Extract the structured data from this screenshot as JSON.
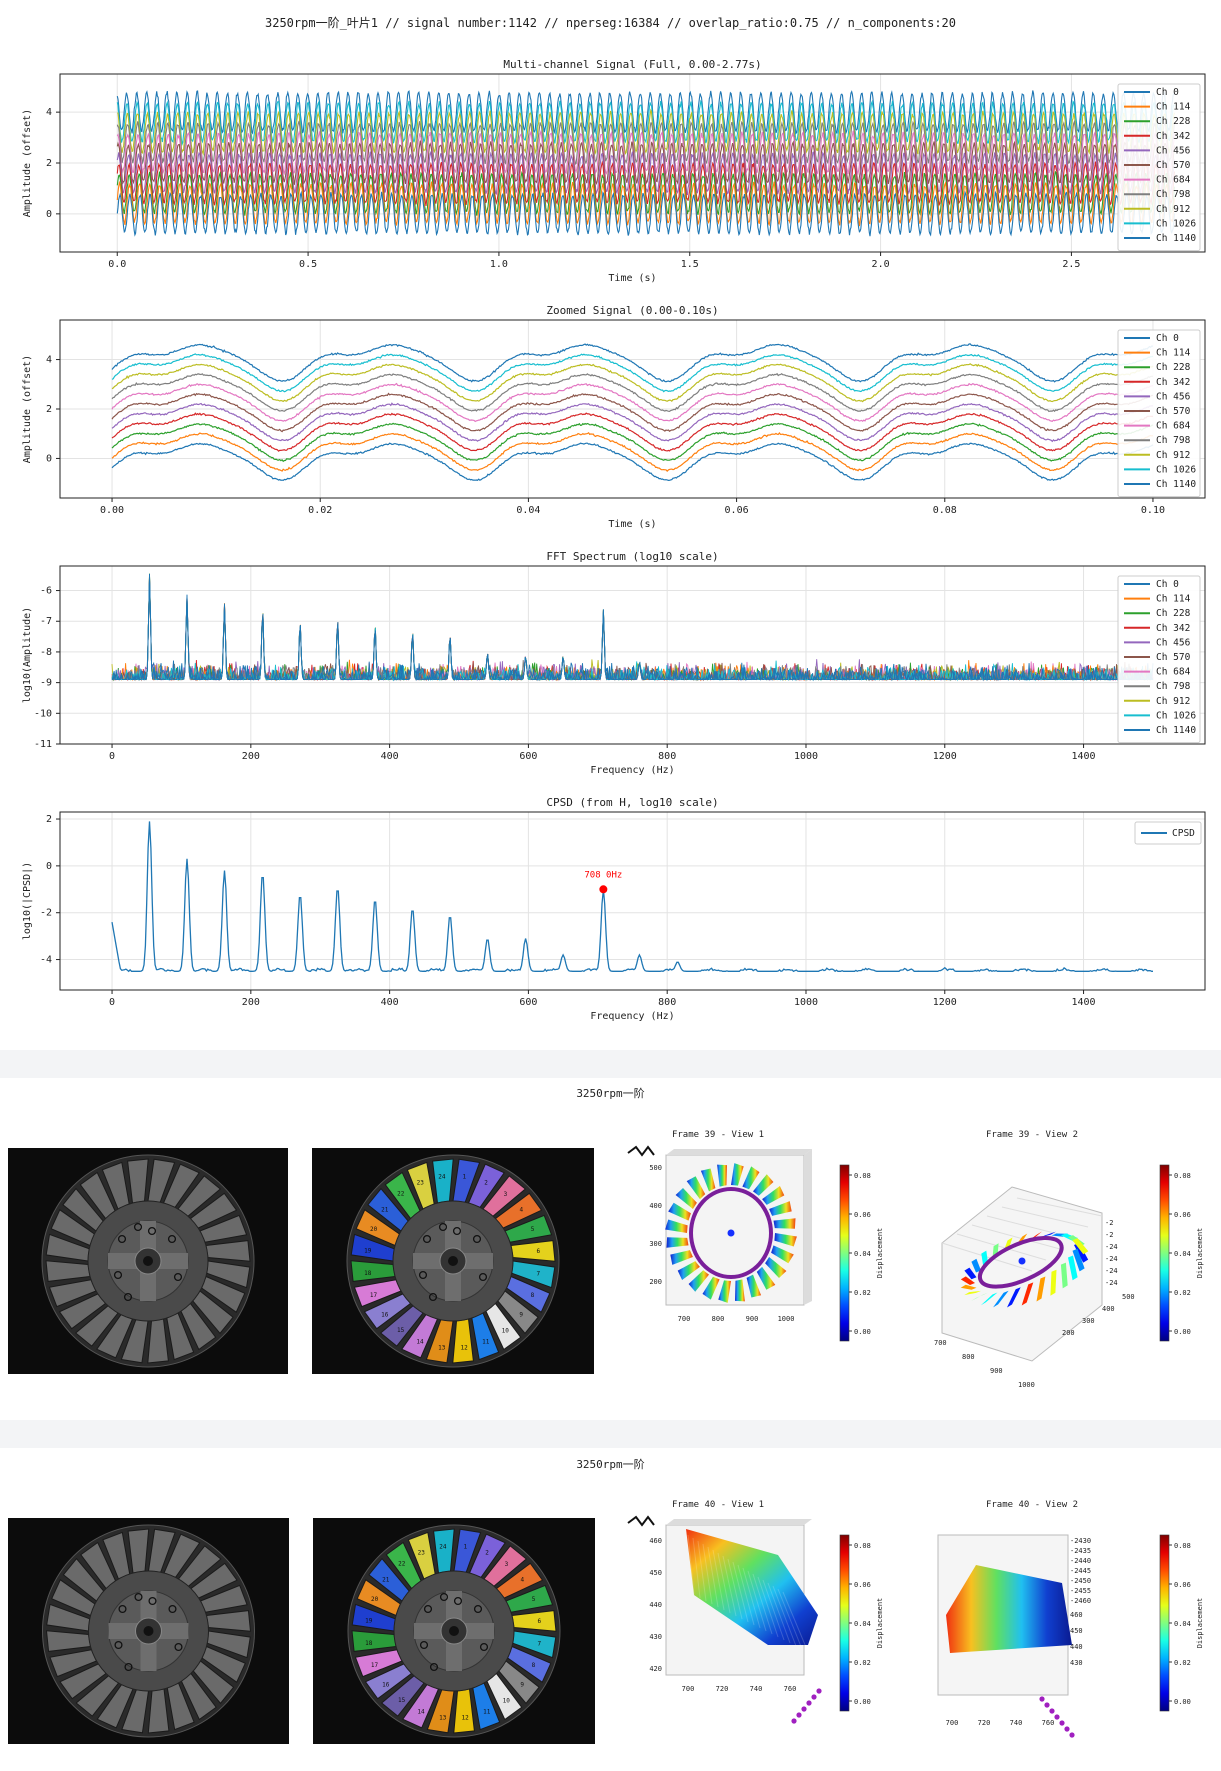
{
  "page_title": "3250rpm一阶_叶片1 // signal number:1142 // nperseg:16384 // overlap_ratio:0.75 // n_components:20",
  "channel_colors": [
    "#1f77b4",
    "#ff7f0e",
    "#2ca02c",
    "#d62728",
    "#9467bd",
    "#8c564b",
    "#e377c2",
    "#7f7f7f",
    "#bcbd22",
    "#17becf",
    "#1f77b4"
  ],
  "chart_data": [
    {
      "type": "line",
      "title": "Multi-channel Signal (Full, 0.00-2.77s)",
      "xlabel": "Time (s)",
      "ylabel": "Amplitude (offset)",
      "xlim": [
        -0.15,
        2.85
      ],
      "ylim": [
        -1.5,
        5.5
      ],
      "xticks": [
        "0.0",
        "0.5",
        "1.0",
        "1.5",
        "2.0",
        "2.5"
      ],
      "yticks": [
        "0",
        "2",
        "4"
      ],
      "legend": [
        "Ch 0",
        "Ch 114",
        "Ch 228",
        "Ch 342",
        "Ch 456",
        "Ch 570",
        "Ch 684",
        "Ch 798",
        "Ch 912",
        "Ch 1026",
        "Ch 1140"
      ],
      "legend_position": "right",
      "offset_step": 0.4,
      "cycles": 105,
      "amplitude": 0.75,
      "grid": true
    },
    {
      "type": "line",
      "title": "Zoomed Signal (0.00-0.10s)",
      "xlabel": "Time (s)",
      "ylabel": "Amplitude (offset)",
      "xlim": [
        -0.005,
        0.105
      ],
      "ylim": [
        -1.6,
        5.6
      ],
      "xticks": [
        "0.00",
        "0.02",
        "0.04",
        "0.06",
        "0.08",
        "0.10"
      ],
      "yticks": [
        "0",
        "2",
        "4"
      ],
      "legend": [
        "Ch 0",
        "Ch 114",
        "Ch 228",
        "Ch 342",
        "Ch 456",
        "Ch 570",
        "Ch 684",
        "Ch 798",
        "Ch 912",
        "Ch 1026",
        "Ch 1140"
      ],
      "legend_position": "right",
      "offset_step": 0.4,
      "period_s": 0.0185,
      "grid": true
    },
    {
      "type": "line",
      "title": "FFT Spectrum (log10 scale)",
      "xlabel": "Frequency (Hz)",
      "ylabel": "log10(Amplitude)",
      "xlim": [
        -75,
        1575
      ],
      "ylim": [
        -11,
        -5.2
      ],
      "xticks": [
        "0",
        "200",
        "400",
        "600",
        "800",
        "1000",
        "1200",
        "1400"
      ],
      "yticks": [
        "-11",
        "-10",
        "-9",
        "-8",
        "-7",
        "-6"
      ],
      "legend": [
        "Ch 0",
        "Ch 114",
        "Ch 228",
        "Ch 342",
        "Ch 456",
        "Ch 570",
        "Ch 684",
        "Ch 798",
        "Ch 912",
        "Ch 1026",
        "Ch 1140"
      ],
      "legend_position": "right",
      "noise_floor": -8.9,
      "peaks": [
        {
          "f": 54,
          "y": -5.4
        },
        {
          "f": 108,
          "y": -6.1
        },
        {
          "f": 162,
          "y": -6.4
        },
        {
          "f": 217,
          "y": -6.6
        },
        {
          "f": 271,
          "y": -7.0
        },
        {
          "f": 325,
          "y": -6.9
        },
        {
          "f": 379,
          "y": -7.1
        },
        {
          "f": 433,
          "y": -7.3
        },
        {
          "f": 487,
          "y": -7.4
        },
        {
          "f": 541,
          "y": -8.0
        },
        {
          "f": 596,
          "y": -8.1
        },
        {
          "f": 650,
          "y": -8.1
        },
        {
          "f": 708,
          "y": -6.6
        },
        {
          "f": 760,
          "y": -8.3
        }
      ],
      "grid": true
    },
    {
      "type": "line",
      "title": "CPSD (from H, log10 scale)",
      "xlabel": "Frequency (Hz)",
      "ylabel": "log10(|CPSD|)",
      "xlim": [
        -75,
        1575
      ],
      "ylim": [
        -5.3,
        2.3
      ],
      "xticks": [
        "0",
        "200",
        "400",
        "600",
        "800",
        "1000",
        "1200",
        "1400"
      ],
      "yticks": [
        "-4",
        "-2",
        "0",
        "2"
      ],
      "legend": [
        "CPSD"
      ],
      "legend_position": "upper right",
      "baseline": -4.5,
      "peaks": [
        {
          "f": 54,
          "y": 1.9
        },
        {
          "f": 108,
          "y": 0.3
        },
        {
          "f": 162,
          "y": -0.2
        },
        {
          "f": 217,
          "y": -0.3
        },
        {
          "f": 271,
          "y": -1.2
        },
        {
          "f": 325,
          "y": -0.9
        },
        {
          "f": 379,
          "y": -1.4
        },
        {
          "f": 433,
          "y": -1.8
        },
        {
          "f": 487,
          "y": -2.1
        },
        {
          "f": 541,
          "y": -3.1
        },
        {
          "f": 596,
          "y": -3.1
        },
        {
          "f": 650,
          "y": -3.8
        },
        {
          "f": 708,
          "y": -1.0
        },
        {
          "f": 760,
          "y": -3.8
        },
        {
          "f": 815,
          "y": -4.1
        }
      ],
      "marker": {
        "f": 708,
        "y": -1.0,
        "label": "708 0Hz"
      },
      "grid": true
    }
  ],
  "rows": [
    {
      "title": "3250rpm一阶",
      "view1_title": "Frame 39 - View 1",
      "view2_title": "Frame 39 - View 2",
      "v1_xticks": [
        "700",
        "800",
        "900",
        "1000"
      ],
      "v1_yticks": [
        "500",
        "400",
        "300",
        "200"
      ],
      "v2_xticks": [
        "700",
        "800",
        "900",
        "1000"
      ],
      "v2_yticks": [
        "500",
        "400",
        "300",
        "200"
      ],
      "v2_zticks": [
        "-2",
        "-2",
        "-24",
        "-24",
        "-24",
        "-24"
      ],
      "colorbar_ticks": [
        "0.08",
        "0.06",
        "0.04",
        "0.02",
        "0.00"
      ],
      "colorbar_label": "Displacement"
    },
    {
      "title": "3250rpm一阶",
      "view1_title": "Frame 40 - View 1",
      "view2_title": "Frame 40 - View 2",
      "v1_xticks": [
        "700",
        "720",
        "740",
        "760"
      ],
      "v1_yticks": [
        "460",
        "450",
        "440",
        "430",
        "420"
      ],
      "v2_xticks": [
        "700",
        "720",
        "740",
        "760"
      ],
      "v2_zticks": [
        "-2430",
        "-2435",
        "-2440",
        "-2445",
        "-2450",
        "-2455",
        "-2460"
      ],
      "v2_yticks": [
        "460",
        "450",
        "440",
        "430"
      ],
      "colorbar_ticks": [
        "0.08",
        "0.06",
        "0.04",
        "0.02",
        "0.00"
      ],
      "colorbar_label": "Displacement"
    }
  ],
  "blade_numbers": [
    "1",
    "2",
    "3",
    "4",
    "5",
    "6",
    "7",
    "8",
    "9",
    "10",
    "11",
    "12",
    "13",
    "14",
    "15",
    "16",
    "17",
    "18",
    "19",
    "20",
    "21",
    "22",
    "23",
    "24"
  ]
}
